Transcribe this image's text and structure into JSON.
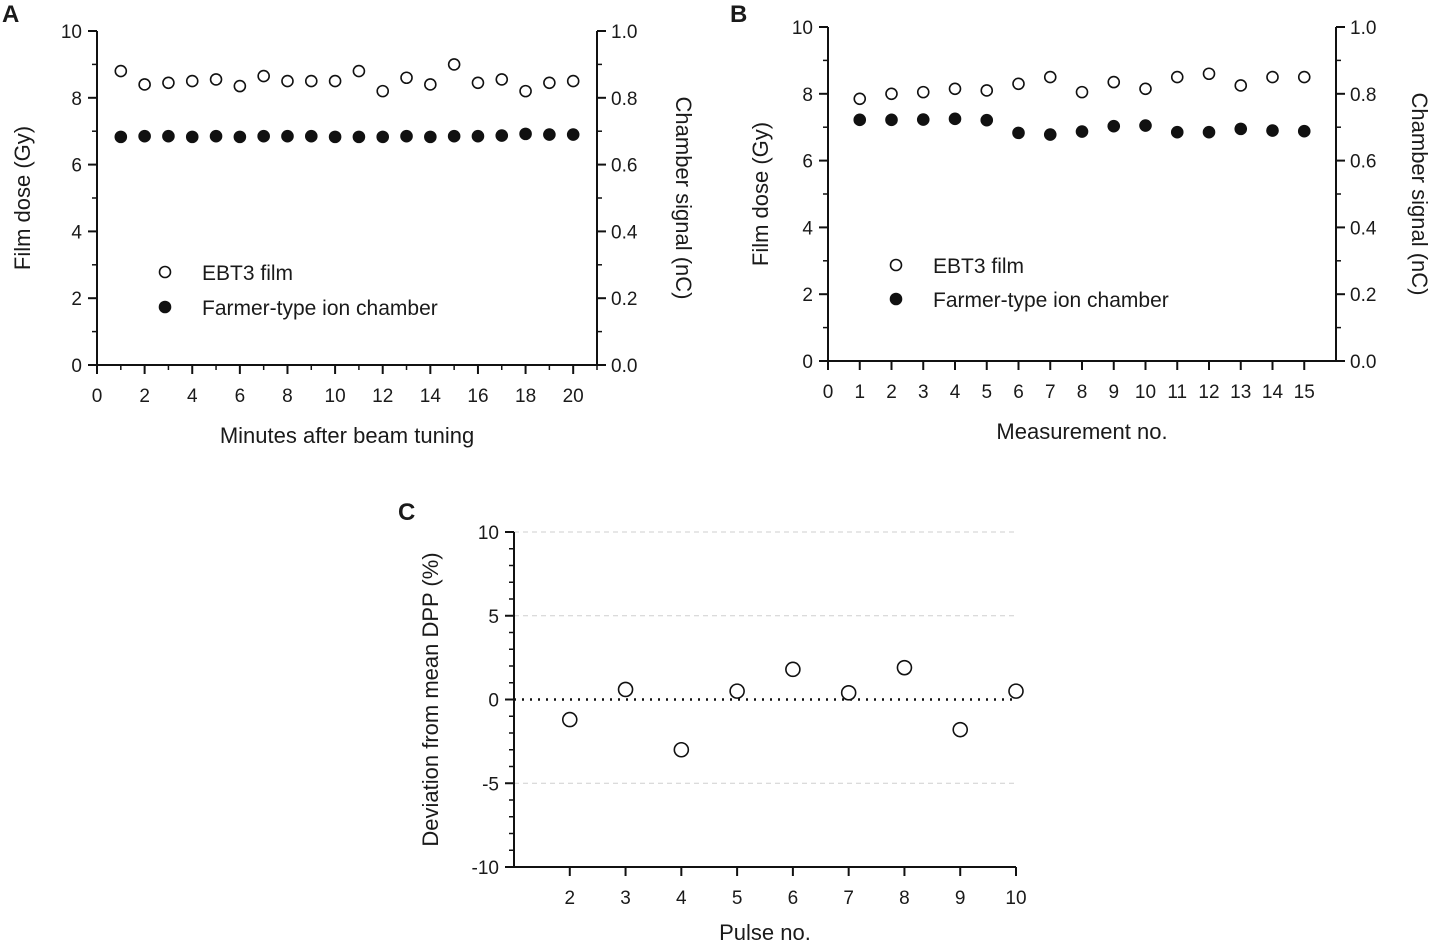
{
  "figure": {
    "panels": [
      "A",
      "B",
      "C"
    ]
  },
  "chart_data": [
    {
      "panel": "A",
      "type": "scatter",
      "xlabel": "Minutes after beam tuning",
      "ylabel": "Film dose (Gy)",
      "y2label": "Chamber signal (nC)",
      "xlim": [
        0,
        21
      ],
      "ylim": [
        0,
        10
      ],
      "y2lim": [
        0.0,
        1.0
      ],
      "xticks": [
        "0",
        "2",
        "4",
        "6",
        "8",
        "10",
        "12",
        "14",
        "16",
        "18",
        "20"
      ],
      "xtick_values": [
        0,
        2,
        4,
        6,
        8,
        10,
        12,
        14,
        16,
        18,
        20
      ],
      "yticks": [
        "0",
        "2",
        "4",
        "6",
        "8",
        "10"
      ],
      "y2ticks": [
        "0.0",
        "0.2",
        "0.4",
        "0.6",
        "0.8",
        "1.0"
      ],
      "legend": [
        "EBT3 film",
        "Farmer-type ion chamber"
      ],
      "legend_position": "lower-left",
      "x": [
        1,
        2,
        3,
        4,
        5,
        6,
        7,
        8,
        9,
        10,
        11,
        12,
        13,
        14,
        15,
        16,
        17,
        18,
        19,
        20
      ],
      "series": [
        {
          "name": "EBT3 film",
          "axis": "left",
          "marker": "open-circle",
          "values": [
            8.8,
            8.4,
            8.45,
            8.5,
            8.55,
            8.35,
            8.65,
            8.5,
            8.5,
            8.5,
            8.8,
            8.2,
            8.6,
            8.4,
            9.0,
            8.45,
            8.55,
            8.2,
            8.45,
            8.5
          ]
        },
        {
          "name": "Farmer-type ion chamber",
          "axis": "right",
          "marker": "filled-circle",
          "values": [
            0.683,
            0.685,
            0.685,
            0.683,
            0.685,
            0.683,
            0.685,
            0.685,
            0.685,
            0.683,
            0.683,
            0.683,
            0.685,
            0.683,
            0.685,
            0.685,
            0.687,
            0.692,
            0.69,
            0.69
          ]
        }
      ]
    },
    {
      "panel": "B",
      "type": "scatter",
      "xlabel": "Measurement no.",
      "ylabel": "Film dose (Gy)",
      "y2label": "Chamber signal (nC)",
      "xlim": [
        0,
        16
      ],
      "ylim": [
        0,
        10
      ],
      "y2lim": [
        0.0,
        1.0
      ],
      "xticks": [
        "0",
        "1",
        "2",
        "3",
        "4",
        "5",
        "6",
        "7",
        "8",
        "9",
        "10",
        "11",
        "12",
        "13",
        "14",
        "15"
      ],
      "xtick_values": [
        0,
        1,
        2,
        3,
        4,
        5,
        6,
        7,
        8,
        9,
        10,
        11,
        12,
        13,
        14,
        15
      ],
      "yticks": [
        "0",
        "2",
        "4",
        "6",
        "8",
        "10"
      ],
      "y2ticks": [
        "0.0",
        "0.2",
        "0.4",
        "0.6",
        "0.8",
        "1.0"
      ],
      "legend": [
        "EBT3 film",
        "Farmer-type ion chamber"
      ],
      "legend_position": "lower-left",
      "x": [
        1,
        2,
        3,
        4,
        5,
        6,
        7,
        8,
        9,
        10,
        11,
        12,
        13,
        14,
        15
      ],
      "series": [
        {
          "name": "EBT3 film",
          "axis": "left",
          "marker": "open-circle",
          "values": [
            7.85,
            8.0,
            8.05,
            8.15,
            8.1,
            8.3,
            8.5,
            8.05,
            8.35,
            8.15,
            8.5,
            8.6,
            8.25,
            8.5,
            8.5
          ]
        },
        {
          "name": "Farmer-type ion chamber",
          "axis": "right",
          "marker": "filled-circle",
          "values": [
            0.722,
            0.722,
            0.723,
            0.725,
            0.721,
            0.683,
            0.678,
            0.687,
            0.703,
            0.705,
            0.685,
            0.685,
            0.695,
            0.69,
            0.688
          ]
        }
      ]
    },
    {
      "panel": "C",
      "type": "scatter",
      "xlabel": "Pulse no.",
      "ylabel": "Deviation from mean DPP (%)",
      "xlim": [
        1,
        10
      ],
      "ylim": [
        -10,
        10
      ],
      "xticks": [
        "2",
        "3",
        "4",
        "5",
        "6",
        "7",
        "8",
        "9",
        "10"
      ],
      "xtick_values": [
        2,
        3,
        4,
        5,
        6,
        7,
        8,
        9,
        10
      ],
      "yticks": [
        "-10",
        "-5",
        "0",
        "5",
        "10"
      ],
      "ytick_values": [
        -10,
        -5,
        0,
        5,
        10
      ],
      "grid": "dashed horizontal at -5, 5, 10; dotted line at 0",
      "x": [
        2,
        3,
        4,
        5,
        6,
        7,
        8,
        9,
        10
      ],
      "series": [
        {
          "name": "Deviation",
          "marker": "open-circle",
          "values": [
            -1.2,
            0.6,
            -3.0,
            0.5,
            1.8,
            0.4,
            1.9,
            -1.8,
            0.5
          ]
        }
      ]
    }
  ]
}
